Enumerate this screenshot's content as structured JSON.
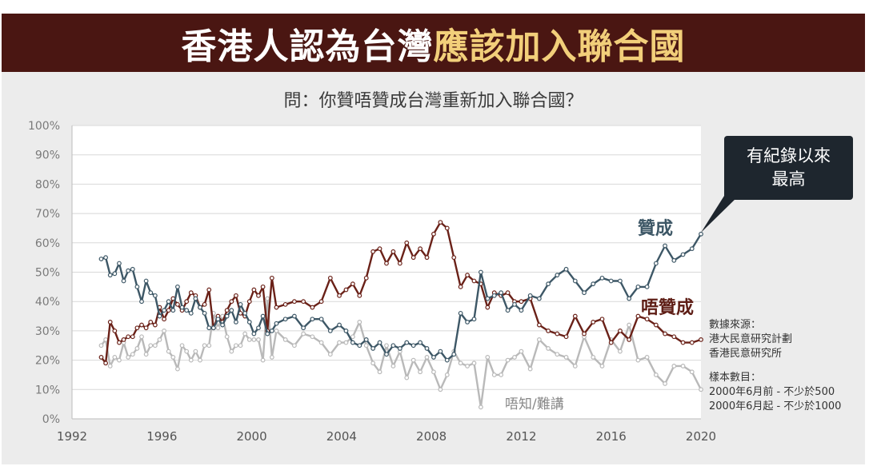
{
  "title": {
    "part1": "香港人認為台灣",
    "part2": "應該加入聯合國"
  },
  "question": "問：你贊唔贊成台灣重新加入聯合國？",
  "callout": {
    "line1": "有紀錄以來",
    "line2": "最高"
  },
  "notes": {
    "source_label": "數據來源：",
    "source1": "港大民意研究計劃",
    "source2": "香港民意研究所",
    "sample_label": "樣本數目：",
    "sample1": "2000年6月前 - 不少於500",
    "sample2": "2000年6月起 - 不少於1000"
  },
  "colors": {
    "support": "#3d5766",
    "oppose": "#6a2118",
    "unknown": "#b9b9b9",
    "banner": "#4a1612",
    "accent": "#f2cf7a"
  },
  "chart_data": {
    "type": "line",
    "title": "問：你贊唔贊成台灣重新加入聯合國？",
    "xlabel": "",
    "ylabel": "",
    "xlim": [
      1992,
      2020
    ],
    "ylim": [
      0,
      100
    ],
    "x_ticks": [
      "1992",
      "1996",
      "2000",
      "2004",
      "2008",
      "2012",
      "2016",
      "2020"
    ],
    "y_ticks": [
      "0%",
      "10%",
      "20%",
      "30%",
      "40%",
      "50%",
      "60%",
      "70%",
      "80%",
      "90%",
      "100%"
    ],
    "grid": true,
    "series": [
      {
        "name": "贊成",
        "label": "贊成",
        "points": [
          [
            1993.3,
            54.5
          ],
          [
            1993.5,
            55
          ],
          [
            1993.7,
            49
          ],
          [
            1993.9,
            49.5
          ],
          [
            1994.1,
            53
          ],
          [
            1994.3,
            47
          ],
          [
            1994.5,
            50.5
          ],
          [
            1994.7,
            51
          ],
          [
            1994.9,
            45
          ],
          [
            1995.1,
            40
          ],
          [
            1995.3,
            47
          ],
          [
            1995.5,
            43
          ],
          [
            1995.7,
            42
          ],
          [
            1995.9,
            35
          ],
          [
            1996.1,
            37
          ],
          [
            1996.3,
            40
          ],
          [
            1996.5,
            37
          ],
          [
            1996.7,
            45
          ],
          [
            1996.9,
            38
          ],
          [
            1997.1,
            37
          ],
          [
            1997.3,
            36
          ],
          [
            1997.5,
            41
          ],
          [
            1997.7,
            38
          ],
          [
            1997.9,
            36
          ],
          [
            1998.1,
            31
          ],
          [
            1998.3,
            31
          ],
          [
            1998.5,
            34
          ],
          [
            1998.7,
            32
          ],
          [
            1998.9,
            35
          ],
          [
            1999.1,
            37
          ],
          [
            1999.3,
            33
          ],
          [
            1999.5,
            39
          ],
          [
            1999.7,
            36
          ],
          [
            1999.9,
            33
          ],
          [
            2000.1,
            29
          ],
          [
            2000.3,
            31
          ],
          [
            2000.5,
            35
          ],
          [
            2000.7,
            29
          ],
          [
            2000.9,
            30
          ],
          [
            2001.1,
            32.5
          ],
          [
            2001.5,
            34
          ],
          [
            2001.9,
            35
          ],
          [
            2002.3,
            31
          ],
          [
            2002.7,
            34
          ],
          [
            2003.1,
            34
          ],
          [
            2003.5,
            30
          ],
          [
            2003.9,
            32
          ],
          [
            2004.2,
            30
          ],
          [
            2004.5,
            26
          ],
          [
            2004.8,
            25
          ],
          [
            2005.1,
            27
          ],
          [
            2005.4,
            24
          ],
          [
            2005.7,
            26
          ],
          [
            2006.0,
            22
          ],
          [
            2006.3,
            25
          ],
          [
            2006.6,
            24
          ],
          [
            2006.9,
            26
          ],
          [
            2007.2,
            25
          ],
          [
            2007.5,
            26
          ],
          [
            2007.8,
            24
          ],
          [
            2008.1,
            21
          ],
          [
            2008.4,
            23
          ],
          [
            2008.7,
            20
          ],
          [
            2009.0,
            22
          ],
          [
            2009.3,
            36
          ],
          [
            2009.6,
            33
          ],
          [
            2009.9,
            34
          ],
          [
            2010.2,
            50
          ],
          [
            2010.5,
            41
          ],
          [
            2010.8,
            42
          ],
          [
            2011.1,
            43
          ],
          [
            2011.4,
            37
          ],
          [
            2011.7,
            39
          ],
          [
            2012.0,
            37
          ],
          [
            2012.4,
            42
          ],
          [
            2012.8,
            41
          ],
          [
            2013.2,
            46
          ],
          [
            2013.6,
            49
          ],
          [
            2014.0,
            51
          ],
          [
            2014.4,
            47
          ],
          [
            2014.8,
            43
          ],
          [
            2015.2,
            46
          ],
          [
            2015.6,
            48
          ],
          [
            2016.0,
            47
          ],
          [
            2016.4,
            47
          ],
          [
            2016.8,
            41
          ],
          [
            2017.2,
            45
          ],
          [
            2017.6,
            45
          ],
          [
            2018.0,
            53
          ],
          [
            2018.4,
            59
          ],
          [
            2018.8,
            54
          ],
          [
            2019.2,
            56
          ],
          [
            2019.6,
            58
          ],
          [
            2020.0,
            63
          ]
        ]
      },
      {
        "name": "唔贊成",
        "label": "唔贊成",
        "points": [
          [
            1993.3,
            21
          ],
          [
            1993.5,
            19
          ],
          [
            1993.7,
            33
          ],
          [
            1993.9,
            30
          ],
          [
            1994.1,
            26
          ],
          [
            1994.3,
            27
          ],
          [
            1994.5,
            28
          ],
          [
            1994.7,
            28
          ],
          [
            1994.9,
            31
          ],
          [
            1995.1,
            32
          ],
          [
            1995.3,
            31
          ],
          [
            1995.5,
            33
          ],
          [
            1995.7,
            32
          ],
          [
            1995.9,
            38
          ],
          [
            1996.1,
            34
          ],
          [
            1996.3,
            37
          ],
          [
            1996.5,
            41
          ],
          [
            1996.7,
            39
          ],
          [
            1996.9,
            37
          ],
          [
            1997.1,
            40
          ],
          [
            1997.3,
            43
          ],
          [
            1997.5,
            42
          ],
          [
            1997.7,
            38
          ],
          [
            1997.9,
            39
          ],
          [
            1998.1,
            44
          ],
          [
            1998.3,
            31
          ],
          [
            1998.5,
            35
          ],
          [
            1998.7,
            33
          ],
          [
            1998.9,
            37
          ],
          [
            1999.1,
            40
          ],
          [
            1999.3,
            42
          ],
          [
            1999.5,
            36
          ],
          [
            1999.7,
            35
          ],
          [
            1999.9,
            40
          ],
          [
            2000.1,
            44
          ],
          [
            2000.3,
            42
          ],
          [
            2000.5,
            45
          ],
          [
            2000.7,
            30
          ],
          [
            2000.9,
            48
          ],
          [
            2001.1,
            38
          ],
          [
            2001.5,
            39
          ],
          [
            2001.9,
            40
          ],
          [
            2002.3,
            40
          ],
          [
            2002.7,
            38
          ],
          [
            2003.1,
            40
          ],
          [
            2003.5,
            48
          ],
          [
            2003.9,
            42
          ],
          [
            2004.2,
            44
          ],
          [
            2004.5,
            46
          ],
          [
            2004.8,
            42
          ],
          [
            2005.1,
            48
          ],
          [
            2005.4,
            57
          ],
          [
            2005.7,
            58
          ],
          [
            2006.0,
            53
          ],
          [
            2006.3,
            57
          ],
          [
            2006.6,
            53
          ],
          [
            2006.9,
            60
          ],
          [
            2007.2,
            55
          ],
          [
            2007.5,
            58
          ],
          [
            2007.8,
            55
          ],
          [
            2008.1,
            63
          ],
          [
            2008.4,
            67
          ],
          [
            2008.7,
            65
          ],
          [
            2009.0,
            55
          ],
          [
            2009.3,
            45
          ],
          [
            2009.6,
            49
          ],
          [
            2009.9,
            47
          ],
          [
            2010.2,
            46
          ],
          [
            2010.5,
            38
          ],
          [
            2010.8,
            43
          ],
          [
            2011.1,
            42
          ],
          [
            2011.4,
            43
          ],
          [
            2011.7,
            40
          ],
          [
            2012.0,
            40
          ],
          [
            2012.4,
            41
          ],
          [
            2012.8,
            32
          ],
          [
            2013.2,
            30
          ],
          [
            2013.6,
            29
          ],
          [
            2014.0,
            28
          ],
          [
            2014.4,
            35
          ],
          [
            2014.8,
            29
          ],
          [
            2015.2,
            33
          ],
          [
            2015.6,
            34
          ],
          [
            2016.0,
            26
          ],
          [
            2016.4,
            30
          ],
          [
            2016.8,
            27
          ],
          [
            2017.2,
            35
          ],
          [
            2017.6,
            34
          ],
          [
            2018.0,
            32
          ],
          [
            2018.4,
            29
          ],
          [
            2018.8,
            28
          ],
          [
            2019.2,
            26
          ],
          [
            2019.6,
            26
          ],
          [
            2020.0,
            27
          ]
        ]
      },
      {
        "name": "唔知/難講",
        "label": "唔知/難講",
        "points": [
          [
            1993.3,
            25
          ],
          [
            1993.5,
            27
          ],
          [
            1993.7,
            18
          ],
          [
            1993.9,
            21
          ],
          [
            1994.1,
            20
          ],
          [
            1994.3,
            26
          ],
          [
            1994.5,
            21
          ],
          [
            1994.7,
            22
          ],
          [
            1994.9,
            24
          ],
          [
            1995.1,
            28
          ],
          [
            1995.3,
            22
          ],
          [
            1995.5,
            25
          ],
          [
            1995.7,
            25
          ],
          [
            1995.9,
            27
          ],
          [
            1996.1,
            30
          ],
          [
            1996.3,
            23
          ],
          [
            1996.5,
            21
          ],
          [
            1996.7,
            17
          ],
          [
            1996.9,
            25
          ],
          [
            1997.1,
            23
          ],
          [
            1997.3,
            20
          ],
          [
            1997.5,
            23
          ],
          [
            1997.7,
            20
          ],
          [
            1997.9,
            25
          ],
          [
            1998.1,
            25
          ],
          [
            1998.3,
            36
          ],
          [
            1998.5,
            31
          ],
          [
            1998.7,
            35
          ],
          [
            1998.9,
            28
          ],
          [
            1999.1,
            23
          ],
          [
            1999.3,
            25
          ],
          [
            1999.5,
            25
          ],
          [
            1999.7,
            29
          ],
          [
            1999.9,
            27
          ],
          [
            2000.1,
            27
          ],
          [
            2000.3,
            27
          ],
          [
            2000.5,
            20
          ],
          [
            2000.7,
            41
          ],
          [
            2000.9,
            21
          ],
          [
            2001.1,
            30
          ],
          [
            2001.5,
            27
          ],
          [
            2001.9,
            25
          ],
          [
            2002.3,
            29
          ],
          [
            2002.7,
            28
          ],
          [
            2003.1,
            26
          ],
          [
            2003.5,
            22
          ],
          [
            2003.9,
            26
          ],
          [
            2004.2,
            26
          ],
          [
            2004.5,
            28
          ],
          [
            2004.8,
            33
          ],
          [
            2005.1,
            25
          ],
          [
            2005.4,
            19
          ],
          [
            2005.7,
            16
          ],
          [
            2006.0,
            25
          ],
          [
            2006.3,
            18
          ],
          [
            2006.6,
            23
          ],
          [
            2006.9,
            14
          ],
          [
            2007.2,
            20
          ],
          [
            2007.5,
            16
          ],
          [
            2007.8,
            21
          ],
          [
            2008.1,
            16
          ],
          [
            2008.4,
            10
          ],
          [
            2008.7,
            15
          ],
          [
            2009.0,
            23
          ],
          [
            2009.3,
            19
          ],
          [
            2009.6,
            18
          ],
          [
            2009.9,
            19
          ],
          [
            2010.2,
            4
          ],
          [
            2010.5,
            21
          ],
          [
            2010.8,
            15
          ],
          [
            2011.1,
            15
          ],
          [
            2011.4,
            20
          ],
          [
            2011.7,
            21
          ],
          [
            2012.0,
            23
          ],
          [
            2012.4,
            17
          ],
          [
            2012.8,
            27
          ],
          [
            2013.2,
            24
          ],
          [
            2013.6,
            22
          ],
          [
            2014.0,
            21
          ],
          [
            2014.4,
            18
          ],
          [
            2014.8,
            28
          ],
          [
            2015.2,
            21
          ],
          [
            2015.6,
            18
          ],
          [
            2016.0,
            27
          ],
          [
            2016.4,
            23
          ],
          [
            2016.8,
            32
          ],
          [
            2017.2,
            20
          ],
          [
            2017.6,
            21
          ],
          [
            2018.0,
            15
          ],
          [
            2018.4,
            12
          ],
          [
            2018.8,
            18
          ],
          [
            2019.2,
            18
          ],
          [
            2019.6,
            16
          ],
          [
            2020.0,
            10
          ]
        ]
      }
    ]
  }
}
